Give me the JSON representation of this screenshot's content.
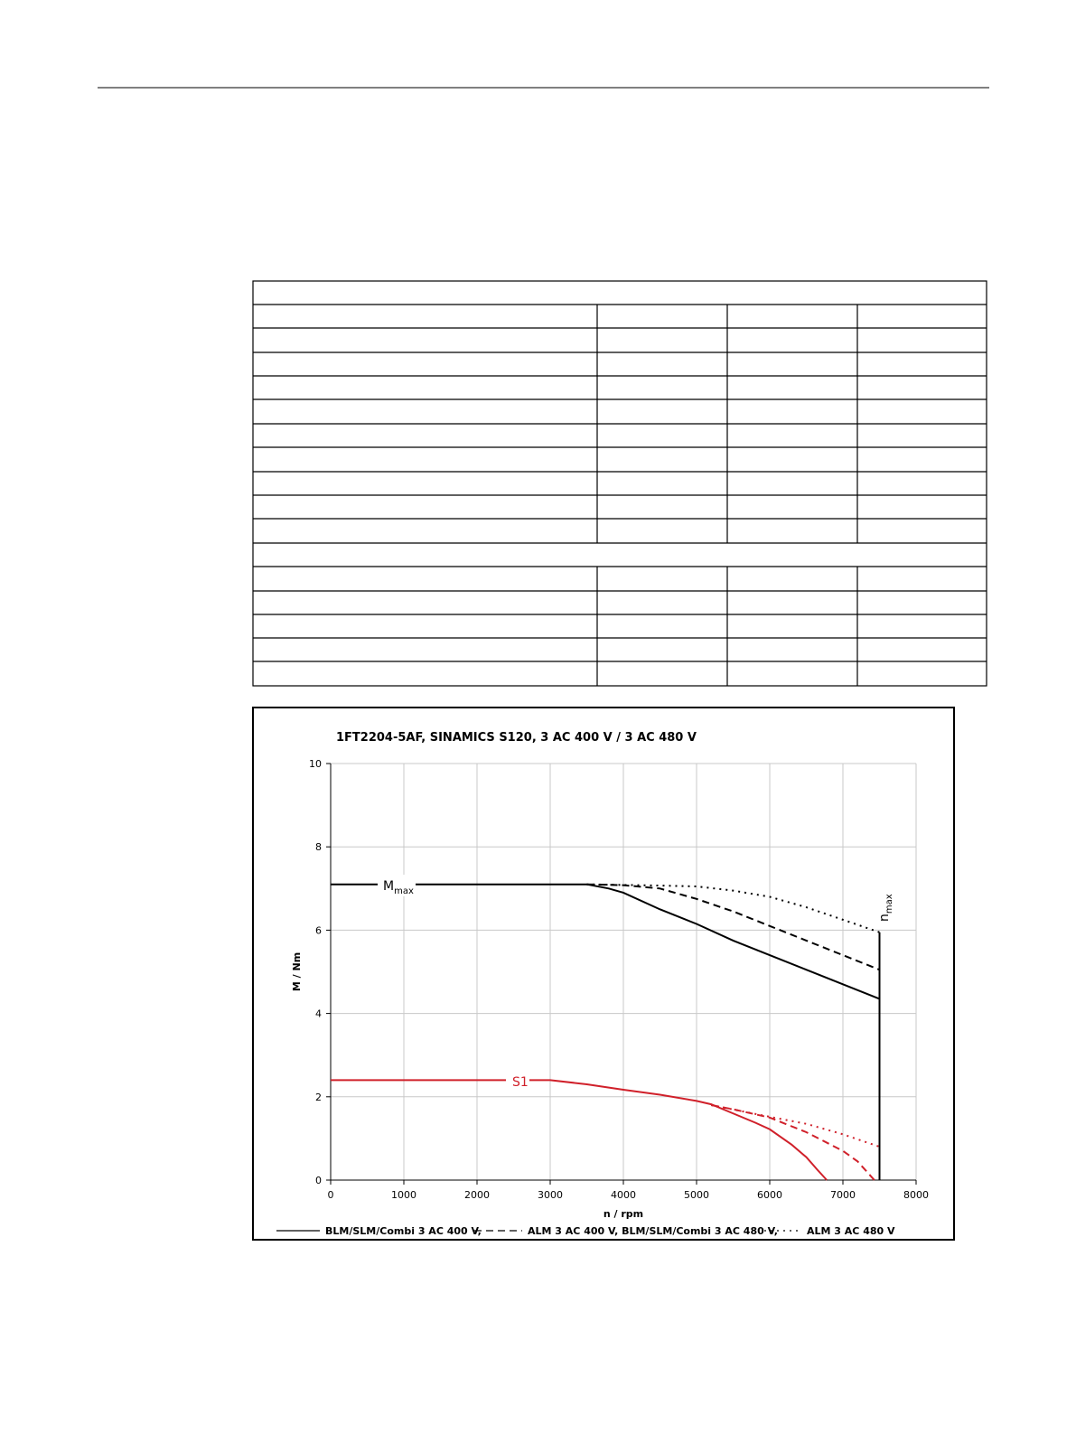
{
  "chart_data": {
    "type": "line",
    "title": "1FT2204-5AF,  SINAMICS S120,  3 AC 400 V / 3 AC 480 V",
    "x_label": "n / rpm",
    "y_label": "M / Nm",
    "xlim": [
      0,
      8000
    ],
    "xticks": [
      0,
      1000,
      2000,
      3000,
      4000,
      5000,
      6000,
      7000,
      8000
    ],
    "ylim": [
      0,
      10
    ],
    "yticks": [
      0,
      2,
      4,
      6,
      8,
      10
    ],
    "grid": true,
    "legend": [
      {
        "label": "BLM/SLM/Combi 3 AC 400 V,",
        "dash": "solid"
      },
      {
        "label": "ALM 3 AC 400 V, BLM/SLM/Combi 3 AC 480 V,",
        "dash": "dashed"
      },
      {
        "label": "ALM 3 AC 480 V",
        "dash": "dotted"
      }
    ],
    "series": [
      {
        "color": "#000000",
        "dash": "solid",
        "x": [
          0,
          3500,
          3800,
          4000,
          4500,
          5000,
          5500,
          6000,
          6500,
          7000,
          7500
        ],
        "values": [
          7.1,
          7.1,
          7.0,
          6.9,
          6.5,
          6.15,
          5.75,
          5.4,
          5.05,
          4.7,
          4.35
        ]
      },
      {
        "color": "#000000",
        "dash": "dashed",
        "x": [
          3500,
          4000,
          4500,
          5000,
          5500,
          6000,
          6500,
          7000,
          7500
        ],
        "values": [
          7.1,
          7.08,
          7.0,
          6.75,
          6.45,
          6.1,
          5.75,
          5.4,
          5.05
        ]
      },
      {
        "color": "#000000",
        "dash": "dotted",
        "x": [
          3500,
          4500,
          5000,
          5500,
          6000,
          6500,
          7000,
          7500
        ],
        "values": [
          7.1,
          7.07,
          7.05,
          6.95,
          6.8,
          6.55,
          6.25,
          5.95
        ]
      },
      {
        "color": "#d0202a",
        "dash": "solid",
        "x": [
          0,
          3000,
          3500,
          4000,
          4500,
          5000,
          5200,
          5500,
          5800,
          6000,
          6300,
          6500,
          6650,
          6780
        ],
        "values": [
          2.4,
          2.4,
          2.3,
          2.17,
          2.05,
          1.9,
          1.82,
          1.6,
          1.38,
          1.22,
          0.85,
          0.55,
          0.25,
          0
        ]
      },
      {
        "color": "#d0202a",
        "dash": "dashed",
        "x": [
          5200,
          5500,
          6000,
          6500,
          7000,
          7200,
          7430
        ],
        "values": [
          1.8,
          1.7,
          1.5,
          1.15,
          0.7,
          0.45,
          0
        ]
      },
      {
        "color": "#d0202a",
        "dash": "dotted",
        "x": [
          5200,
          6000,
          6500,
          7000,
          7500
        ],
        "values": [
          1.8,
          1.52,
          1.35,
          1.1,
          0.8
        ]
      },
      {
        "color": "#000000",
        "dash": "solid",
        "x": [
          7500,
          7500
        ],
        "values": [
          0,
          5.95
        ]
      }
    ],
    "annotations": [
      {
        "text": "M",
        "subscript": "max"
      },
      {
        "text": "S1"
      },
      {
        "text": "n",
        "subscript": "max"
      }
    ]
  }
}
